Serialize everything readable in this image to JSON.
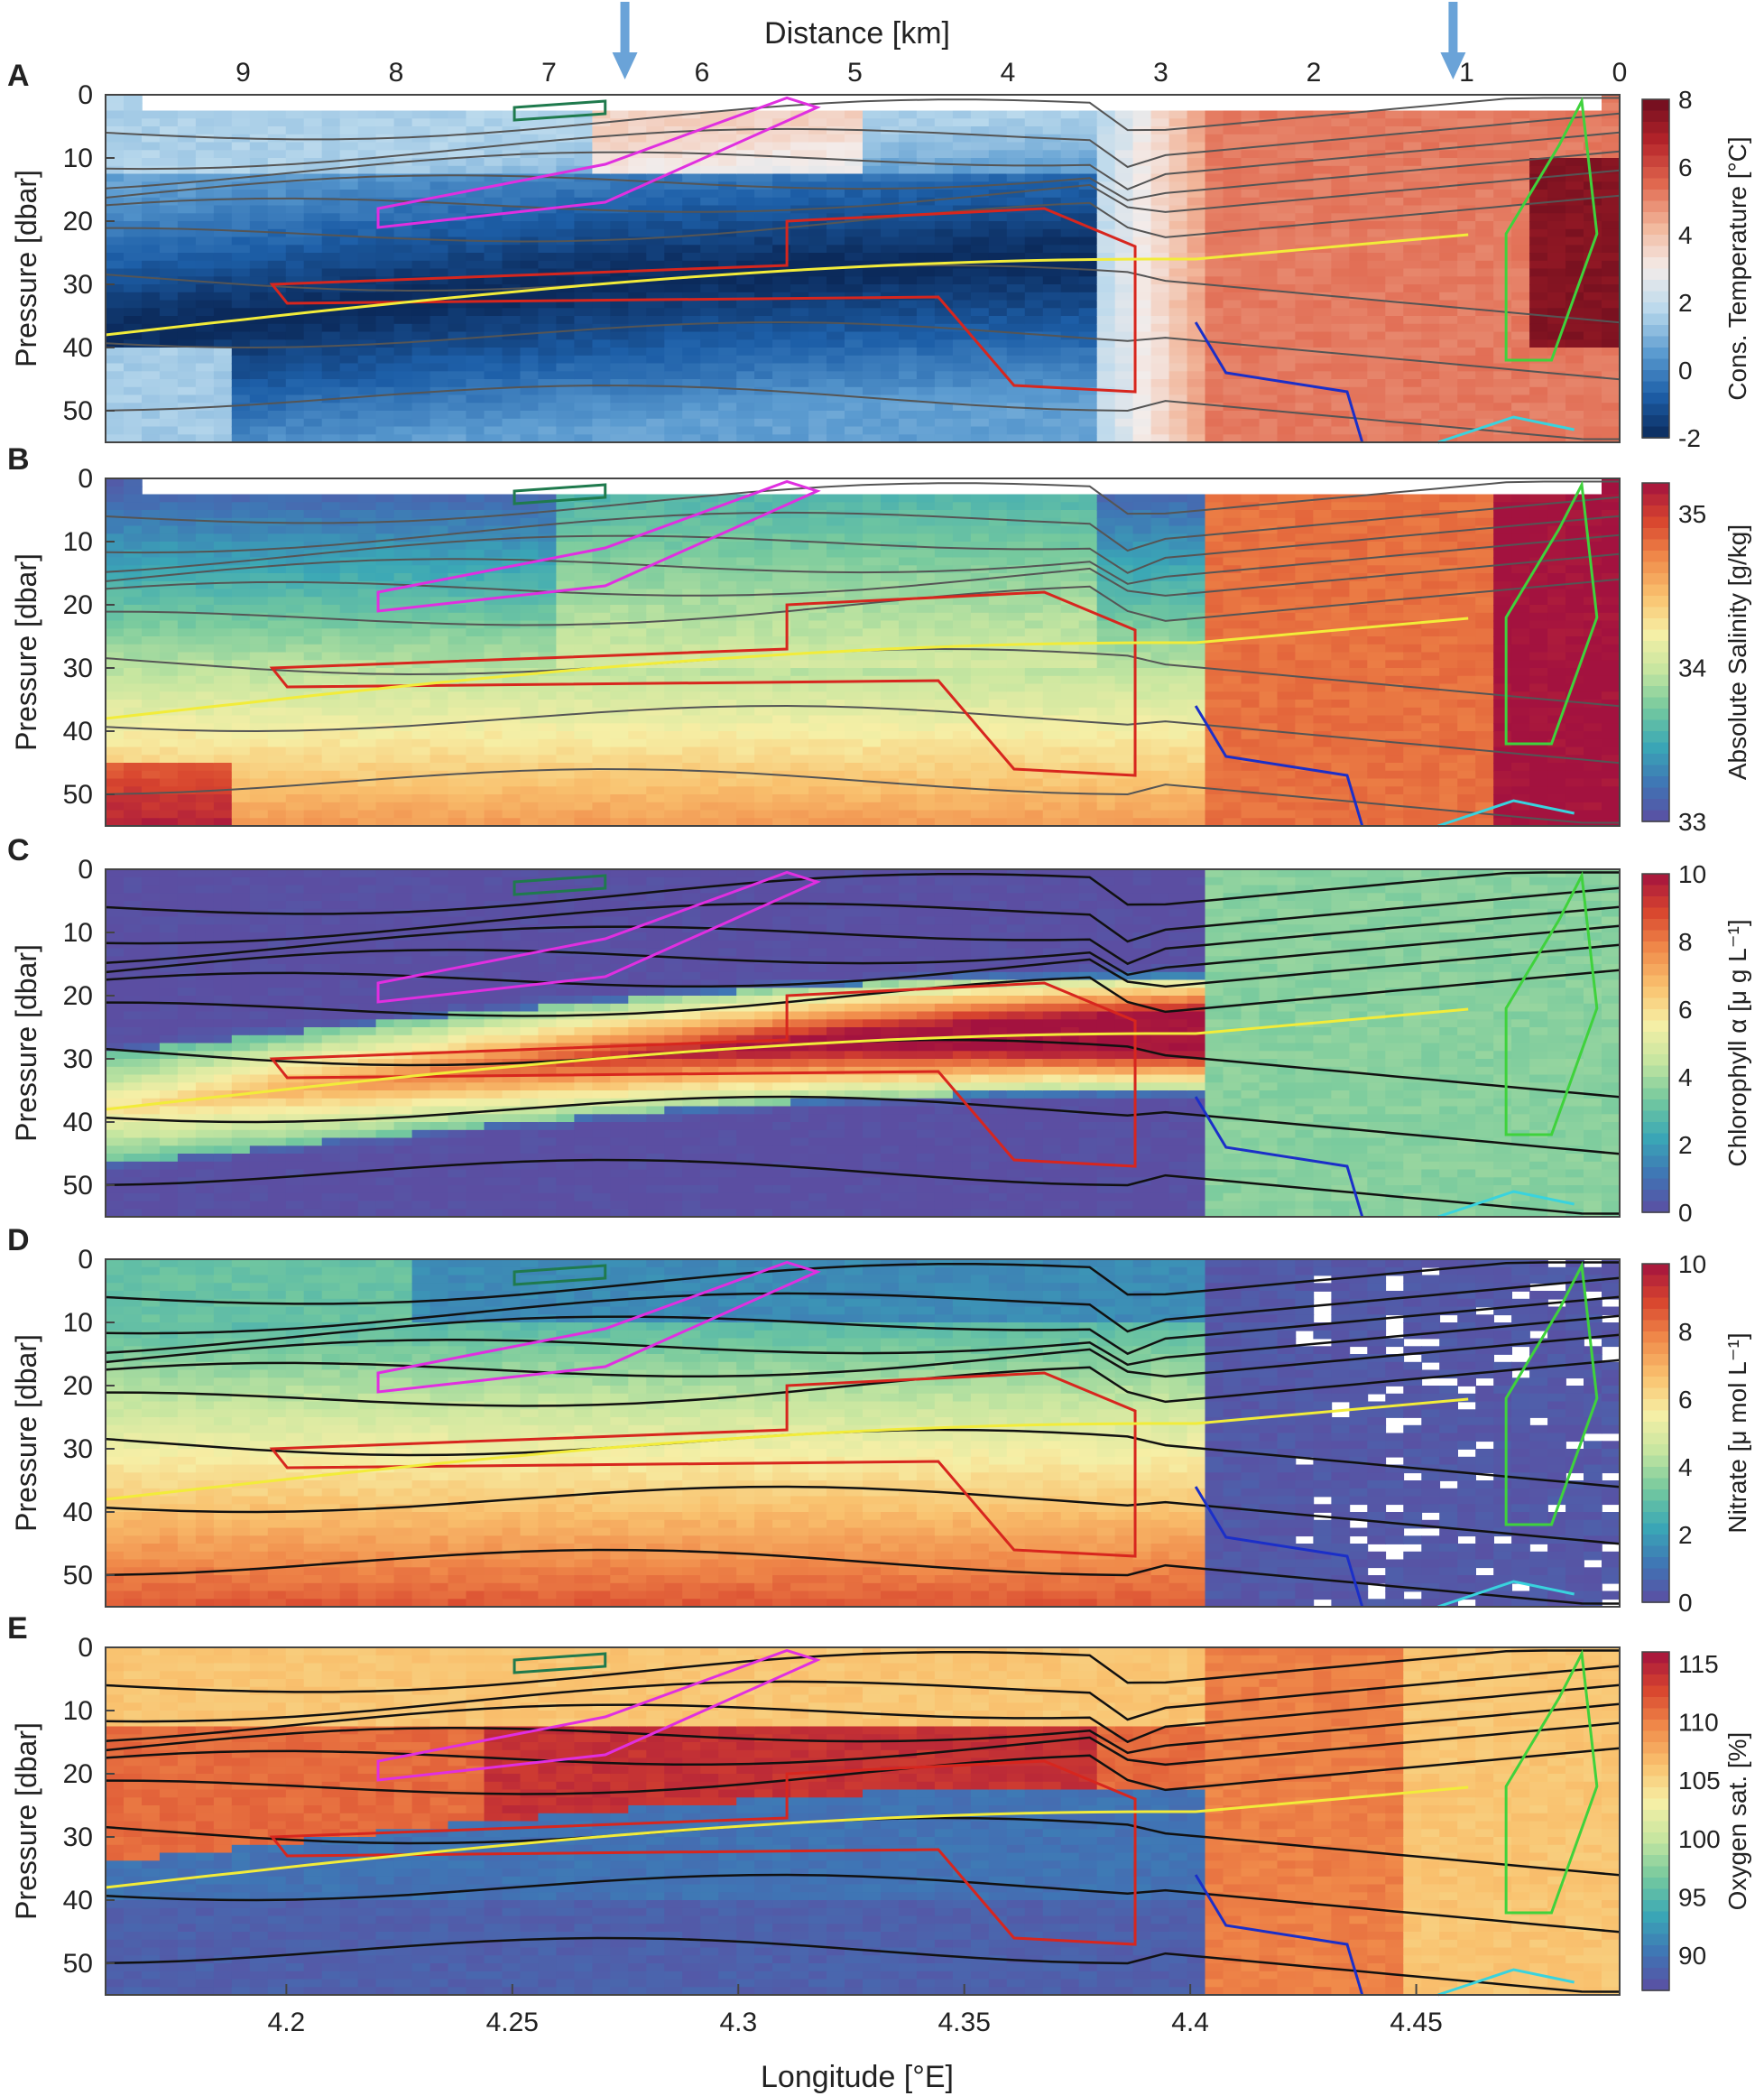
{
  "figure": {
    "top_axis_label": "Distance [km]",
    "top_ticks": [
      "9",
      "8",
      "7",
      "6",
      "5",
      "4",
      "3",
      "2",
      "1",
      "0"
    ],
    "bottom_axis_label": "Longitude [°E]",
    "bottom_ticks": [
      "4.2",
      "4.25",
      "4.3",
      "4.35",
      "4.4",
      "4.45"
    ],
    "colors": {
      "yellow_line": "#f2ec3a",
      "red_outline": "#d7261e",
      "magenta_outline": "#e02fe0",
      "green_outline": "#3fd23c",
      "blue_outline": "#1b2fc8",
      "cyan_outline": "#39d3de",
      "teal_outline": "#1f7a4d",
      "arrow": "#6aa3d8"
    }
  },
  "chart_data": [
    {
      "type": "heatmap",
      "panel": "A",
      "ylabel": "Pressure [dbar]",
      "yticks": [
        "0",
        "10",
        "20",
        "30",
        "40",
        "50"
      ],
      "ylim": [
        0,
        55
      ],
      "colorbar": {
        "label": "Cons. Temperature [°C]",
        "ticks": [
          "8",
          "6",
          "4",
          "2",
          "0",
          "-2"
        ],
        "range": [
          -2,
          8
        ],
        "colors": [
          "#0b2a5b",
          "#1d5fa8",
          "#5b9bd0",
          "#b8d8ec",
          "#f3ecea",
          "#f2b69a",
          "#e0684f",
          "#b5232a",
          "#6d0d1e"
        ]
      }
    },
    {
      "type": "heatmap",
      "panel": "B",
      "ylabel": "Pressure [dbar]",
      "yticks": [
        "0",
        "10",
        "20",
        "30",
        "40",
        "50"
      ],
      "ylim": [
        0,
        55
      ],
      "colorbar": {
        "label": "Absolute Salinity [g/kg]",
        "ticks": [
          "35",
          "34",
          "33"
        ],
        "range": [
          33,
          35.2
        ],
        "colors": [
          "#5b4ea2",
          "#3f75b5",
          "#3aa7b6",
          "#75c99e",
          "#c6e6a0",
          "#f6efa6",
          "#f9c16e",
          "#f08a4a",
          "#d8452e",
          "#a3123f"
        ]
      }
    },
    {
      "type": "heatmap",
      "panel": "C",
      "ylabel": "Pressure [dbar]",
      "yticks": [
        "0",
        "10",
        "20",
        "30",
        "40",
        "50"
      ],
      "ylim": [
        0,
        55
      ],
      "colorbar": {
        "label": "Chlorophyll α [μ g L⁻¹]",
        "ticks": [
          "10",
          "8",
          "6",
          "4",
          "2",
          "0"
        ],
        "range": [
          0,
          10
        ],
        "colors": [
          "#5b4ea2",
          "#3f75b5",
          "#3aa7b6",
          "#75c99e",
          "#c6e6a0",
          "#f6efa6",
          "#f9c16e",
          "#f08a4a",
          "#d8452e",
          "#a3123f"
        ]
      }
    },
    {
      "type": "heatmap",
      "panel": "D",
      "ylabel": "Pressure [dbar]",
      "yticks": [
        "0",
        "10",
        "20",
        "30",
        "40",
        "50"
      ],
      "ylim": [
        0,
        55
      ],
      "colorbar": {
        "label": "Nitrate [μ mol L⁻¹]",
        "ticks": [
          "10",
          "8",
          "6",
          "4",
          "2",
          "0"
        ],
        "range": [
          0,
          10
        ],
        "colors": [
          "#5b4ea2",
          "#3f75b5",
          "#3aa7b6",
          "#75c99e",
          "#c6e6a0",
          "#f6efa6",
          "#f9c16e",
          "#f08a4a",
          "#d8452e",
          "#a3123f"
        ]
      }
    },
    {
      "type": "heatmap",
      "panel": "E",
      "ylabel": "Pressure [dbar]",
      "yticks": [
        "0",
        "10",
        "20",
        "30",
        "40",
        "50"
      ],
      "ylim": [
        0,
        55
      ],
      "colorbar": {
        "label": "Oxygen sat. [%]",
        "ticks": [
          "115",
          "110",
          "105",
          "100",
          "95",
          "90"
        ],
        "range": [
          87,
          116
        ],
        "colors": [
          "#5b4ea2",
          "#3f75b5",
          "#3aa7b6",
          "#75c99e",
          "#c6e6a0",
          "#f6efa6",
          "#f9c16e",
          "#f08a4a",
          "#d8452e",
          "#a3123f"
        ]
      }
    }
  ]
}
